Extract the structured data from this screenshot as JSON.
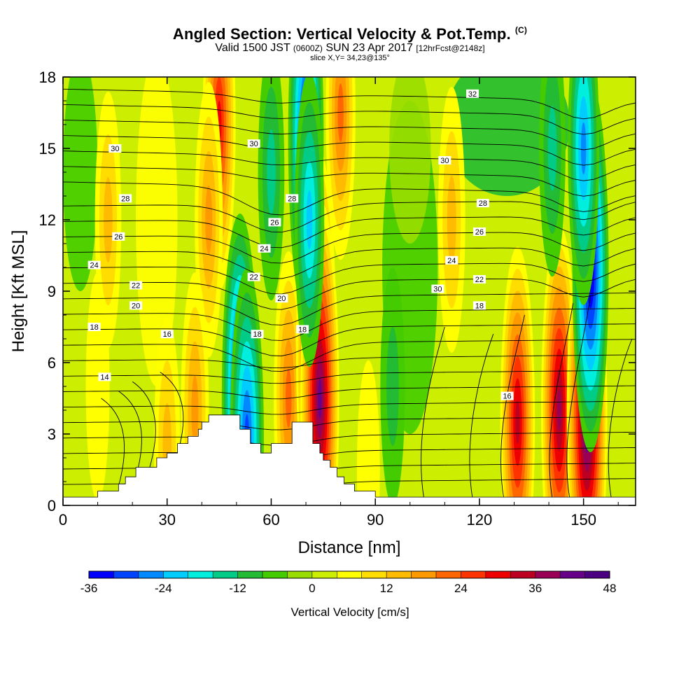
{
  "header": {
    "title": "Angled Section: Vertical Velocity & Pot.Temp.",
    "title_mark": "(C)",
    "valid_main": "Valid 1500 JST",
    "valid_z": "(0600Z)",
    "valid_date": "SUN 23 Apr 2017",
    "valid_fcst": "[12hrFcst@2148z]",
    "slice": "slice X,Y= 34,23@135°"
  },
  "chart_data": {
    "type": "heatmap",
    "xlabel": "Distance [nm]",
    "ylabel": "Height [Kft MSL]",
    "xlim": [
      0,
      165
    ],
    "ylim": [
      0,
      18
    ],
    "x_ticks": [
      0,
      30,
      60,
      90,
      120,
      150
    ],
    "y_ticks": [
      0,
      3,
      6,
      9,
      12,
      15,
      18
    ],
    "colorbar": {
      "title": "Vertical Velocity [cm/s]",
      "min": -36,
      "max": 48,
      "step": 4,
      "tick_labels": [
        -36,
        -24,
        -12,
        0,
        12,
        24,
        36,
        48
      ],
      "colors": [
        "#0000ff",
        "#0044ff",
        "#0088ff",
        "#00ccff",
        "#00eedd",
        "#00cc88",
        "#22bb33",
        "#44cc00",
        "#99dd00",
        "#ccee00",
        "#ffff00",
        "#ffdd00",
        "#ffbb00",
        "#ff9900",
        "#ff6600",
        "#ff3300",
        "#ee0000",
        "#bb0022",
        "#990055",
        "#660088",
        "#4b0082"
      ]
    },
    "velocity_features": [
      {
        "x": 45,
        "z": 16.0,
        "w": 26
      },
      {
        "x": 42,
        "z": 12.0,
        "w": 14
      },
      {
        "x": 38,
        "z": 4.0,
        "w": 14
      },
      {
        "x": 51,
        "z": 4.5,
        "w": -34
      },
      {
        "x": 53,
        "z": 2.8,
        "w": -28
      },
      {
        "x": 65,
        "z": 4.5,
        "w": 18
      },
      {
        "x": 73,
        "z": 6.5,
        "w": 44
      },
      {
        "x": 74,
        "z": 4.5,
        "w": 40
      },
      {
        "x": 70,
        "z": 15.5,
        "w": -32
      },
      {
        "x": 71,
        "z": 12.0,
        "w": -18
      },
      {
        "x": 80,
        "z": 16.5,
        "w": 18
      },
      {
        "x": 60,
        "z": 14.0,
        "w": -10
      },
      {
        "x": 131,
        "z": 3.5,
        "w": 30
      },
      {
        "x": 143,
        "z": 4.0,
        "w": 34
      },
      {
        "x": 151,
        "z": 3.8,
        "w": 44
      },
      {
        "x": 152,
        "z": 10.0,
        "w": -34
      },
      {
        "x": 150,
        "z": 15.0,
        "w": -22
      },
      {
        "x": 141,
        "z": 15.0,
        "w": -10
      },
      {
        "x": 112,
        "z": 12.0,
        "w": 12
      },
      {
        "x": 95,
        "z": 5.0,
        "w": -6
      },
      {
        "x": 10,
        "z": 5.0,
        "w": 4
      },
      {
        "x": 13,
        "z": 12.0,
        "w": 10
      },
      {
        "x": 30,
        "z": 2.5,
        "w": 10
      },
      {
        "x": 88,
        "z": 1.5,
        "w": 2
      }
    ],
    "contour_labels": [
      {
        "x": 15,
        "z": 15.0,
        "text": "30"
      },
      {
        "x": 18,
        "z": 12.9,
        "text": "28"
      },
      {
        "x": 16,
        "z": 11.3,
        "text": "26"
      },
      {
        "x": 9,
        "z": 10.1,
        "text": "24"
      },
      {
        "x": 21,
        "z": 9.25,
        "text": "22"
      },
      {
        "x": 21,
        "z": 8.4,
        "text": "20"
      },
      {
        "x": 9,
        "z": 7.5,
        "text": "18"
      },
      {
        "x": 30,
        "z": 7.2,
        "text": "16"
      },
      {
        "x": 12,
        "z": 5.4,
        "text": "14"
      },
      {
        "x": 55,
        "z": 15.2,
        "text": "30"
      },
      {
        "x": 66,
        "z": 12.9,
        "text": "28"
      },
      {
        "x": 61,
        "z": 11.9,
        "text": "26"
      },
      {
        "x": 58,
        "z": 10.8,
        "text": "24"
      },
      {
        "x": 55,
        "z": 9.6,
        "text": "22"
      },
      {
        "x": 63,
        "z": 8.7,
        "text": "20"
      },
      {
        "x": 69,
        "z": 7.4,
        "text": "18"
      },
      {
        "x": 56,
        "z": 7.2,
        "text": "18"
      },
      {
        "x": 108,
        "z": 9.1,
        "text": "30"
      },
      {
        "x": 110,
        "z": 14.5,
        "text": "30"
      },
      {
        "x": 112,
        "z": 10.3,
        "text": "24"
      },
      {
        "x": 118,
        "z": 17.3,
        "text": "32"
      },
      {
        "x": 121,
        "z": 12.7,
        "text": "28"
      },
      {
        "x": 120,
        "z": 11.5,
        "text": "26"
      },
      {
        "x": 120,
        "z": 9.5,
        "text": "22"
      },
      {
        "x": 120,
        "z": 8.4,
        "text": "18"
      },
      {
        "x": 128,
        "z": 4.6,
        "text": "16"
      }
    ],
    "terrain": [
      [
        0,
        0.35
      ],
      [
        10,
        0.35
      ],
      [
        10,
        0.6
      ],
      [
        16,
        0.6
      ],
      [
        16,
        0.9
      ],
      [
        18,
        0.9
      ],
      [
        18,
        1.2
      ],
      [
        21,
        1.2
      ],
      [
        21,
        1.6
      ],
      [
        24,
        1.6
      ],
      [
        24,
        1.6
      ],
      [
        27,
        1.6
      ],
      [
        27,
        2.0
      ],
      [
        30,
        2.0
      ],
      [
        30,
        2.2
      ],
      [
        33,
        2.2
      ],
      [
        33,
        2.6
      ],
      [
        36,
        2.6
      ],
      [
        36,
        2.9
      ],
      [
        39,
        2.9
      ],
      [
        39,
        3.2
      ],
      [
        40,
        3.2
      ],
      [
        40,
        3.5
      ],
      [
        42,
        3.5
      ],
      [
        42,
        3.8
      ],
      [
        51,
        3.8
      ],
      [
        51,
        3.2
      ],
      [
        54,
        3.2
      ],
      [
        54,
        2.6
      ],
      [
        57,
        2.6
      ],
      [
        57,
        2.2
      ],
      [
        60,
        2.2
      ],
      [
        60,
        2.6
      ],
      [
        66,
        2.6
      ],
      [
        66,
        3.5
      ],
      [
        72,
        3.5
      ],
      [
        72,
        2.6
      ],
      [
        74,
        2.6
      ],
      [
        74,
        2.2
      ],
      [
        75,
        2.2
      ],
      [
        75,
        1.9
      ],
      [
        77,
        1.9
      ],
      [
        77,
        1.6
      ],
      [
        79,
        1.6
      ],
      [
        79,
        1.2
      ],
      [
        81,
        1.2
      ],
      [
        81,
        0.9
      ],
      [
        84,
        0.9
      ],
      [
        84,
        0.6
      ],
      [
        90,
        0.6
      ],
      [
        90,
        0.35
      ],
      [
        165,
        0.35
      ]
    ]
  }
}
